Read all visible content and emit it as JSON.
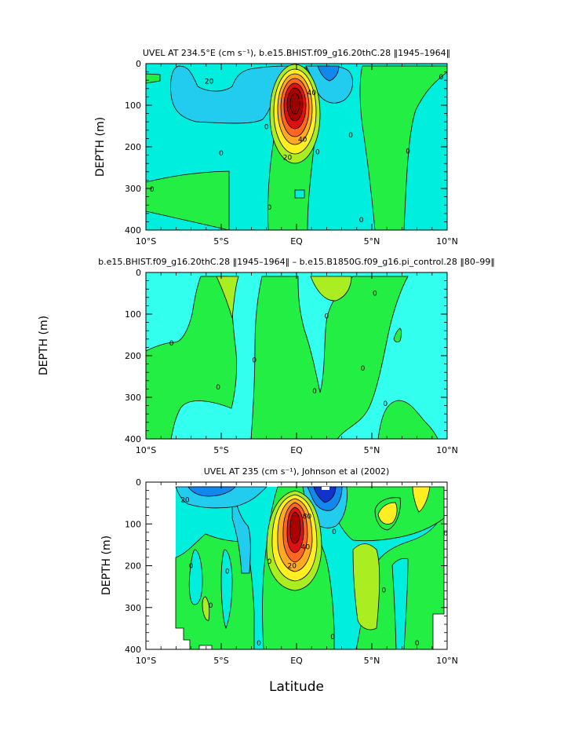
{
  "colors": {
    "cyan_light": "#33ffee",
    "cyan": "#00eedd",
    "cyan_mid": "#22ccee",
    "blue": "#1188ee",
    "blue_dark": "#1133cc",
    "green": "#22ee44",
    "yellowgreen": "#aaee22",
    "yellow": "#ffee22",
    "orange": "#ffaa22",
    "orange_dark": "#ff6622",
    "red": "#dd1111",
    "darkred": "#aa0000",
    "line": "#000000"
  },
  "figure": {
    "shared_ylabel": "DEPTH (m)",
    "shared_xlabel": "Latitude"
  },
  "chart_data": [
    {
      "type": "contour",
      "title": "UVEL AT 234.5°E (cm s⁻¹), b.e15.BHIST.f09_g16.20thC.28 ‖1945–1964‖",
      "xlabel": "",
      "ylabel": "DEPTH (m)",
      "xlim": [
        -10,
        10
      ],
      "ylim": [
        400,
        0
      ],
      "xtick_values": [
        -10,
        -5,
        0,
        5,
        10
      ],
      "xtick_labels": [
        "10°S",
        "5°S",
        "EQ",
        "5°N",
        "10°N"
      ],
      "ytick_values": [
        0,
        100,
        200,
        300,
        400
      ],
      "ytick_labels": [
        "0",
        "100",
        "200",
        "300",
        "400"
      ],
      "contour_labels": [
        {
          "text": "20",
          "x": -5.8,
          "y": 42
        },
        {
          "text": "0",
          "x": -9.6,
          "y": 302
        },
        {
          "text": "0",
          "x": -5.0,
          "y": 215
        },
        {
          "text": "0",
          "x": -1.8,
          "y": 345
        },
        {
          "text": "0",
          "x": 1.4,
          "y": 212
        },
        {
          "text": "0",
          "x": 3.6,
          "y": 172
        },
        {
          "text": "0",
          "x": 4.3,
          "y": 375
        },
        {
          "text": "0",
          "x": 7.4,
          "y": 210
        },
        {
          "text": "0",
          "x": 9.6,
          "y": 32
        },
        {
          "text": "0",
          "x": -2.0,
          "y": 152
        },
        {
          "text": "20",
          "x": -0.6,
          "y": 225
        },
        {
          "text": "40",
          "x": 0.4,
          "y": 182
        },
        {
          "text": "40",
          "x": 1.0,
          "y": 70
        }
      ]
    },
    {
      "type": "contour",
      "title": "b.e15.BHIST.f09_g16.20thC.28 ‖1945–1964‖ – b.e15.B1850G.f09_g16.pi_control.28 ‖80–99‖",
      "xlabel": "",
      "ylabel": "DEPTH (m)",
      "xlim": [
        -10,
        10
      ],
      "ylim": [
        400,
        0
      ],
      "xtick_values": [
        -10,
        -5,
        0,
        5,
        10
      ],
      "xtick_labels": [
        "10°S",
        "5°S",
        "EQ",
        "5°N",
        "10°N"
      ],
      "ytick_values": [
        0,
        100,
        200,
        300,
        400
      ],
      "ytick_labels": [
        "0",
        "100",
        "200",
        "300",
        "400"
      ],
      "contour_labels": [
        {
          "text": "0",
          "x": -8.3,
          "y": 170
        },
        {
          "text": "0",
          "x": -5.2,
          "y": 275
        },
        {
          "text": "0",
          "x": -2.8,
          "y": 210
        },
        {
          "text": "0",
          "x": 1.2,
          "y": 285
        },
        {
          "text": "0",
          "x": 2.0,
          "y": 105
        },
        {
          "text": "0",
          "x": 5.2,
          "y": 50
        },
        {
          "text": "0",
          "x": 4.4,
          "y": 230
        },
        {
          "text": "0",
          "x": 5.9,
          "y": 315
        }
      ]
    },
    {
      "type": "contour",
      "title": "UVEL AT 235 (cm s⁻¹), Johnson et al (2002)",
      "xlabel": "Latitude",
      "ylabel": "DEPTH (m)",
      "xlim": [
        -10,
        10
      ],
      "ylim": [
        400,
        0
      ],
      "xtick_values": [
        -10,
        -5,
        0,
        5,
        10
      ],
      "xtick_labels": [
        "10°S",
        "5°S",
        "EQ",
        "5°N",
        "10°N"
      ],
      "ytick_values": [
        0,
        100,
        200,
        300,
        400
      ],
      "ytick_labels": [
        "0",
        "100",
        "200",
        "300",
        "400"
      ],
      "contour_labels": [
        {
          "text": "20",
          "x": -7.4,
          "y": 42
        },
        {
          "text": "0",
          "x": -7.0,
          "y": 200
        },
        {
          "text": "0",
          "x": -5.7,
          "y": 295
        },
        {
          "text": "0",
          "x": -4.6,
          "y": 213
        },
        {
          "text": "0",
          "x": -2.5,
          "y": 385
        },
        {
          "text": "0",
          "x": -1.8,
          "y": 190
        },
        {
          "text": "20",
          "x": -0.3,
          "y": 200
        },
        {
          "text": "40",
          "x": 0.6,
          "y": 155
        },
        {
          "text": "80",
          "x": 0.7,
          "y": 82
        },
        {
          "text": "0",
          "x": 2.5,
          "y": 118
        },
        {
          "text": "0",
          "x": 2.4,
          "y": 370
        },
        {
          "text": "0",
          "x": 5.8,
          "y": 258
        },
        {
          "text": "0",
          "x": 8.0,
          "y": 385
        },
        {
          "text": "0",
          "x": 9.9,
          "y": 122
        }
      ]
    }
  ]
}
